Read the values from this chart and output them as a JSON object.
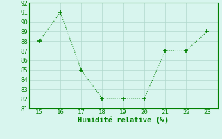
{
  "x": [
    15,
    16,
    17,
    18,
    19,
    20,
    21,
    22,
    23
  ],
  "y": [
    88,
    91,
    85,
    82,
    82,
    82,
    87,
    87,
    89
  ],
  "xlim": [
    14.5,
    23.5
  ],
  "ylim": [
    81,
    92
  ],
  "xticks": [
    15,
    16,
    17,
    18,
    19,
    20,
    21,
    22,
    23
  ],
  "yticks": [
    81,
    82,
    83,
    84,
    85,
    86,
    87,
    88,
    89,
    90,
    91,
    92
  ],
  "xlabel": "Humidité relative (%)",
  "line_color": "#008000",
  "marker_color": "#008000",
  "bg_color": "#d8f5ee",
  "grid_color": "#b0d8cc",
  "tick_label_color": "#008000",
  "xlabel_color": "#008000",
  "tick_fontsize": 6.5,
  "xlabel_fontsize": 7.5
}
